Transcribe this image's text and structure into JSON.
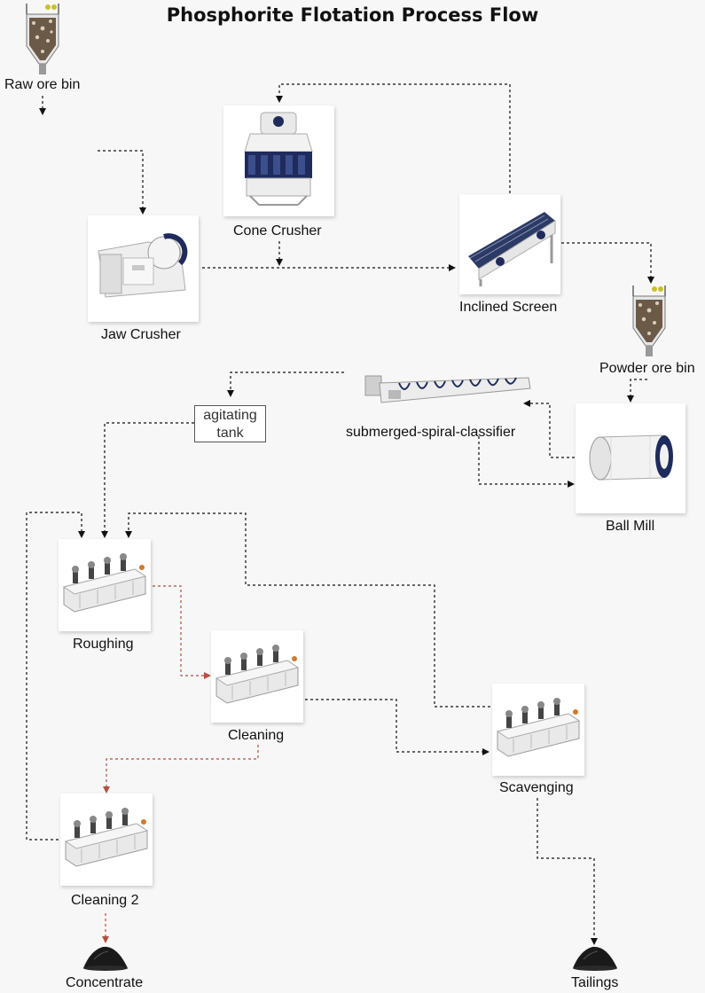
{
  "title": "Phosphorite Flotation Process Flow",
  "nodes": {
    "raw_ore_bin": "Raw ore bin",
    "cone_crusher": "Cone Crusher",
    "jaw_crusher": "Jaw Crusher",
    "inclined_screen": "Inclined Screen",
    "powder_ore_bin": "Powder ore bin",
    "classifier": "submerged-spiral-classifier",
    "agitating_tank_line1": "agitating",
    "agitating_tank_line2": "tank",
    "ball_mill": "Ball Mill",
    "roughing": "Roughing",
    "cleaning": "Cleaning",
    "scavenging": "Scavenging",
    "cleaning2": "Cleaning 2",
    "concentrate": "Concentrate",
    "tailings": "Tailings"
  },
  "colors": {
    "flow_line": "#111111",
    "concentrate_line": "#b0503f",
    "equipment_dark": "#1e2b5c"
  }
}
